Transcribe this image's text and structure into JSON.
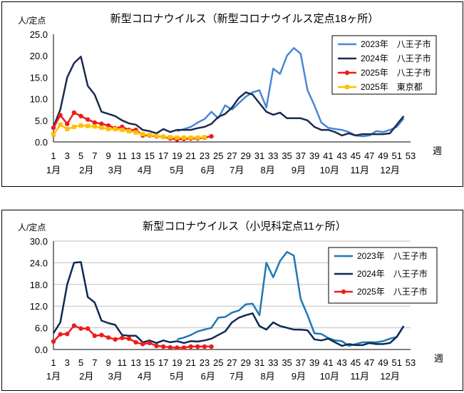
{
  "charts": [
    {
      "title": "新型コロナウイルス（新型コロナウイルス定点18ヶ所）",
      "unit": "人/定点",
      "x_axis_label": "週",
      "y_ticks": [
        "0.0",
        "5.0",
        "10.0",
        "15.0",
        "20.0",
        "25.0"
      ],
      "x_ticks": [
        "1",
        "3",
        "5",
        "7",
        "9",
        "11",
        "13",
        "15",
        "17",
        "19",
        "21",
        "23",
        "25",
        "27",
        "29",
        "31",
        "33",
        "35",
        "37",
        "39",
        "41",
        "43",
        "45",
        "47",
        "49",
        "51",
        "53"
      ],
      "months": [
        "1月",
        "2月",
        "3月",
        "4月",
        "5月",
        "6月",
        "7月",
        "8月",
        "9月",
        "10月",
        "11月",
        "12月"
      ],
      "legend": [
        "2023年　八王子市",
        "2024年　八王子市",
        "2025年　八王子市",
        "2025年　東京都"
      ]
    },
    {
      "title": "新型コロナウイルス（小児科定点11ヶ所）",
      "unit": "人/定点",
      "x_axis_label": "週",
      "y_ticks": [
        "0.0",
        "6.0",
        "12.0",
        "18.0",
        "24.0",
        "30.0"
      ],
      "x_ticks": [
        "1",
        "3",
        "5",
        "7",
        "9",
        "11",
        "13",
        "15",
        "17",
        "19",
        "21",
        "23",
        "25",
        "27",
        "29",
        "31",
        "33",
        "35",
        "37",
        "39",
        "41",
        "43",
        "45",
        "47",
        "49",
        "51",
        "53"
      ],
      "months": [
        "1月",
        "2月",
        "3月",
        "4月",
        "5月",
        "6月",
        "7月",
        "8月",
        "9月",
        "10月",
        "11月",
        "12月"
      ],
      "legend": [
        "2023年　八王子市",
        "2024年　八王子市",
        "2025年　八王子市"
      ]
    }
  ],
  "chart_data": [
    {
      "type": "line",
      "title": "新型コロナウイルス（新型コロナウイルス定点18ヶ所）",
      "ylabel": "人/定点",
      "xlabel": "週",
      "xlim": [
        1,
        53
      ],
      "ylim": [
        0,
        25
      ],
      "grid": false,
      "legend_position": "top-right",
      "series": [
        {
          "name": "2023年　八王子市",
          "color": "#4a86d8",
          "marker": "none",
          "x": [
            19,
            20,
            21,
            22,
            23,
            24,
            25,
            26,
            27,
            28,
            29,
            30,
            31,
            32,
            33,
            34,
            35,
            36,
            37,
            38,
            39,
            40,
            41,
            42,
            43,
            44,
            45,
            46,
            47,
            48,
            49,
            50,
            51,
            52
          ],
          "values": [
            2.5,
            3.0,
            3.5,
            4.5,
            5.3,
            7.0,
            5.5,
            8.5,
            7.5,
            9.0,
            10.5,
            11.5,
            12.0,
            8.0,
            17.0,
            15.8,
            20.0,
            21.8,
            20.5,
            12.0,
            8.5,
            4.5,
            3.3,
            3.0,
            2.8,
            2.3,
            1.5,
            1.3,
            1.5,
            2.5,
            2.3,
            2.8,
            3.5,
            5.5
          ]
        },
        {
          "name": "2024年　八王子市",
          "color": "#1a2b4f",
          "marker": "none",
          "x": [
            1,
            2,
            3,
            4,
            5,
            6,
            7,
            8,
            9,
            10,
            11,
            12,
            13,
            14,
            15,
            16,
            17,
            18,
            19,
            20,
            21,
            22,
            23,
            24,
            25,
            26,
            27,
            28,
            29,
            30,
            31,
            32,
            33,
            34,
            35,
            36,
            37,
            38,
            39,
            40,
            41,
            42,
            43,
            44,
            45,
            46,
            47,
            48,
            49,
            50,
            51,
            52
          ],
          "values": [
            3.5,
            7.5,
            15.0,
            18.3,
            19.8,
            13.0,
            11.0,
            7.0,
            6.5,
            6.0,
            5.0,
            4.3,
            4.0,
            2.8,
            2.5,
            2.0,
            3.0,
            2.3,
            2.8,
            2.8,
            2.8,
            3.2,
            3.5,
            4.2,
            5.8,
            6.5,
            8.0,
            10.2,
            11.5,
            11.0,
            9.0,
            7.0,
            6.3,
            6.8,
            5.5,
            5.5,
            5.5,
            5.0,
            3.5,
            2.8,
            2.8,
            2.3,
            1.5,
            2.0,
            1.5,
            1.8,
            1.8,
            1.8,
            1.8,
            2.0,
            4.0,
            6.0
          ]
        },
        {
          "name": "2025年　八王子市",
          "color": "#ee1c1c",
          "marker": "circle",
          "x": [
            1,
            2,
            3,
            4,
            5,
            6,
            7,
            8,
            9,
            10,
            11,
            12,
            13,
            14,
            15,
            16,
            17,
            18,
            19,
            20,
            21,
            22,
            23,
            24
          ],
          "values": [
            3.3,
            6.2,
            4.2,
            6.8,
            6.0,
            5.2,
            4.5,
            4.2,
            3.8,
            3.2,
            3.5,
            2.8,
            2.8,
            1.5,
            1.5,
            1.3,
            1.2,
            0.8,
            0.6,
            0.7,
            0.8,
            0.8,
            1.0,
            1.3
          ]
        },
        {
          "name": "2025年　東京都",
          "color": "#ffc000",
          "marker": "square",
          "x": [
            1,
            2,
            3,
            4,
            5,
            6,
            7,
            8,
            9,
            10,
            11,
            12,
            13,
            14,
            15,
            16,
            17,
            18,
            19,
            20,
            21,
            22,
            23
          ],
          "values": [
            1.7,
            4.0,
            3.0,
            3.5,
            3.8,
            3.7,
            3.6,
            3.3,
            3.0,
            3.0,
            2.8,
            2.5,
            2.2,
            1.8,
            1.6,
            1.4,
            1.2,
            1.1,
            1.0,
            1.0,
            1.0,
            1.0,
            1.1
          ]
        }
      ]
    },
    {
      "type": "line",
      "title": "新型コロナウイルス（小児科定点11ヶ所）",
      "ylabel": "人/定点",
      "xlabel": "週",
      "xlim": [
        1,
        53
      ],
      "ylim": [
        0,
        30
      ],
      "grid": true,
      "legend_position": "top-right",
      "series": [
        {
          "name": "2023年　八王子市",
          "color": "#1f78b4",
          "marker": "none",
          "x": [
            19,
            20,
            21,
            22,
            23,
            24,
            25,
            26,
            27,
            28,
            29,
            30,
            31,
            32,
            33,
            34,
            35,
            36,
            37,
            38,
            39,
            40,
            41,
            42,
            43,
            44,
            45,
            46,
            47,
            48,
            49,
            50,
            51,
            52
          ],
          "values": [
            2.8,
            3.3,
            4.0,
            5.0,
            5.5,
            6.0,
            8.8,
            9.0,
            10.2,
            10.8,
            12.5,
            12.7,
            9.5,
            24.0,
            20.0,
            24.5,
            27.0,
            26.0,
            14.0,
            9.5,
            4.5,
            4.3,
            3.2,
            2.5,
            2.3,
            1.0,
            1.5,
            2.0,
            2.0,
            2.0,
            2.3,
            3.0,
            3.5,
            6.5
          ]
        },
        {
          "name": "2024年　八王子市",
          "color": "#0d2a55",
          "marker": "none",
          "x": [
            1,
            2,
            3,
            4,
            5,
            6,
            7,
            8,
            9,
            10,
            11,
            12,
            13,
            14,
            15,
            16,
            17,
            18,
            19,
            20,
            21,
            22,
            23,
            24,
            25,
            26,
            27,
            28,
            29,
            30,
            31,
            32,
            33,
            34,
            35,
            36,
            37,
            38,
            39,
            40,
            41,
            42,
            43,
            44,
            45,
            46,
            47,
            48,
            49,
            50,
            51,
            52
          ],
          "values": [
            4.5,
            7.5,
            18.0,
            24.0,
            24.2,
            14.5,
            13.0,
            8.0,
            7.3,
            6.8,
            4.0,
            3.8,
            3.8,
            2.0,
            2.5,
            1.8,
            2.5,
            2.0,
            2.3,
            1.8,
            2.3,
            2.2,
            2.5,
            3.0,
            4.0,
            5.0,
            7.5,
            8.8,
            9.5,
            10.0,
            6.5,
            5.5,
            7.5,
            6.5,
            6.0,
            5.5,
            5.5,
            5.3,
            2.8,
            2.5,
            3.0,
            2.0,
            1.0,
            1.5,
            1.2,
            1.2,
            1.8,
            1.5,
            1.5,
            1.8,
            3.5,
            6.5
          ]
        },
        {
          "name": "2025年　八王子市",
          "color": "#ee1c1c",
          "marker": "circle",
          "x": [
            1,
            2,
            3,
            4,
            5,
            6,
            7,
            8,
            9,
            10,
            11,
            12,
            13,
            14,
            15,
            16,
            17,
            18,
            19,
            20,
            21,
            22,
            23,
            24
          ],
          "values": [
            2.2,
            4.2,
            4.3,
            6.6,
            5.8,
            5.8,
            3.8,
            4.0,
            3.3,
            2.8,
            3.2,
            3.0,
            2.0,
            1.5,
            1.8,
            1.0,
            0.8,
            0.6,
            0.5,
            0.5,
            0.8,
            0.8,
            0.8,
            0.8
          ]
        }
      ]
    }
  ]
}
